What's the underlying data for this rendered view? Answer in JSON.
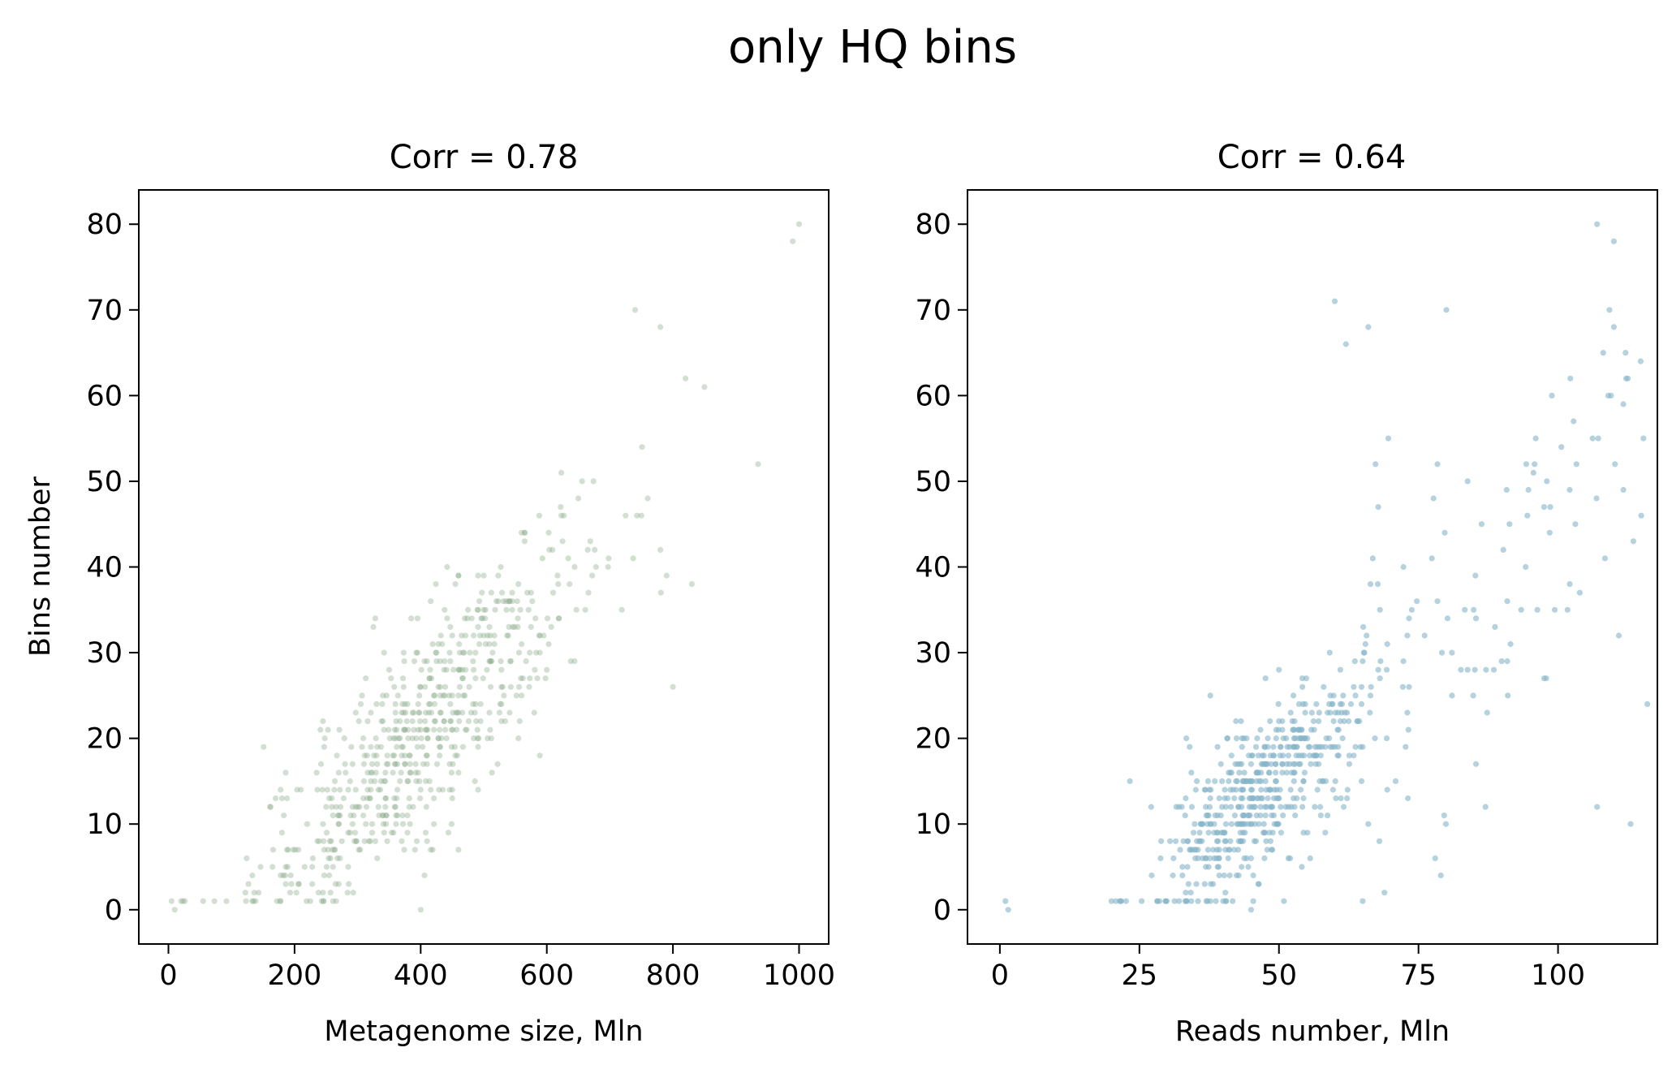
{
  "figure": {
    "suptitle": "only HQ bins"
  },
  "chart_data": [
    {
      "type": "scatter",
      "title": "Corr = 0.78",
      "xlabel": "Metagenome size, Mln",
      "ylabel": "Bins number",
      "xlim": [
        -47,
        1047
      ],
      "ylim": [
        -4,
        84
      ],
      "xticks": [
        0,
        200,
        400,
        600,
        800,
        1000
      ],
      "yticks": [
        0,
        10,
        20,
        30,
        40,
        50,
        60,
        70,
        80
      ],
      "grid": false,
      "color": "#8fae8f",
      "alpha": 0.4,
      "point_count": 640,
      "highlight_points": [
        [
          1000,
          80
        ],
        [
          990,
          78
        ],
        [
          935,
          52
        ],
        [
          850,
          61
        ],
        [
          820,
          62
        ],
        [
          800,
          26
        ],
        [
          780,
          68
        ],
        [
          740,
          70
        ],
        [
          780,
          42
        ],
        [
          830,
          38
        ],
        [
          5,
          1
        ],
        [
          10,
          0
        ],
        [
          400,
          0
        ],
        [
          55,
          1
        ]
      ],
      "x": [],
      "y": []
    },
    {
      "type": "scatter",
      "title": "Corr = 0.64",
      "xlabel": "Reads number, Mln",
      "ylabel": "",
      "xlim": [
        -5.8,
        117.8
      ],
      "ylim": [
        -4,
        84
      ],
      "xticks": [
        0,
        25,
        50,
        75,
        100
      ],
      "yticks": [
        0,
        10,
        20,
        30,
        40,
        50,
        60,
        70,
        80
      ],
      "grid": false,
      "color": "#86b4c8",
      "alpha": 0.6,
      "point_count": 640,
      "highlight_points": [
        [
          107,
          80
        ],
        [
          110,
          78
        ],
        [
          110,
          68
        ],
        [
          60,
          71
        ],
        [
          66,
          68
        ],
        [
          80,
          70
        ],
        [
          116,
          24
        ],
        [
          113,
          10
        ],
        [
          107,
          12
        ],
        [
          1,
          1
        ],
        [
          1.5,
          0
        ],
        [
          45,
          0
        ],
        [
          62,
          66
        ],
        [
          78,
          6
        ]
      ],
      "x": [],
      "y": []
    }
  ]
}
